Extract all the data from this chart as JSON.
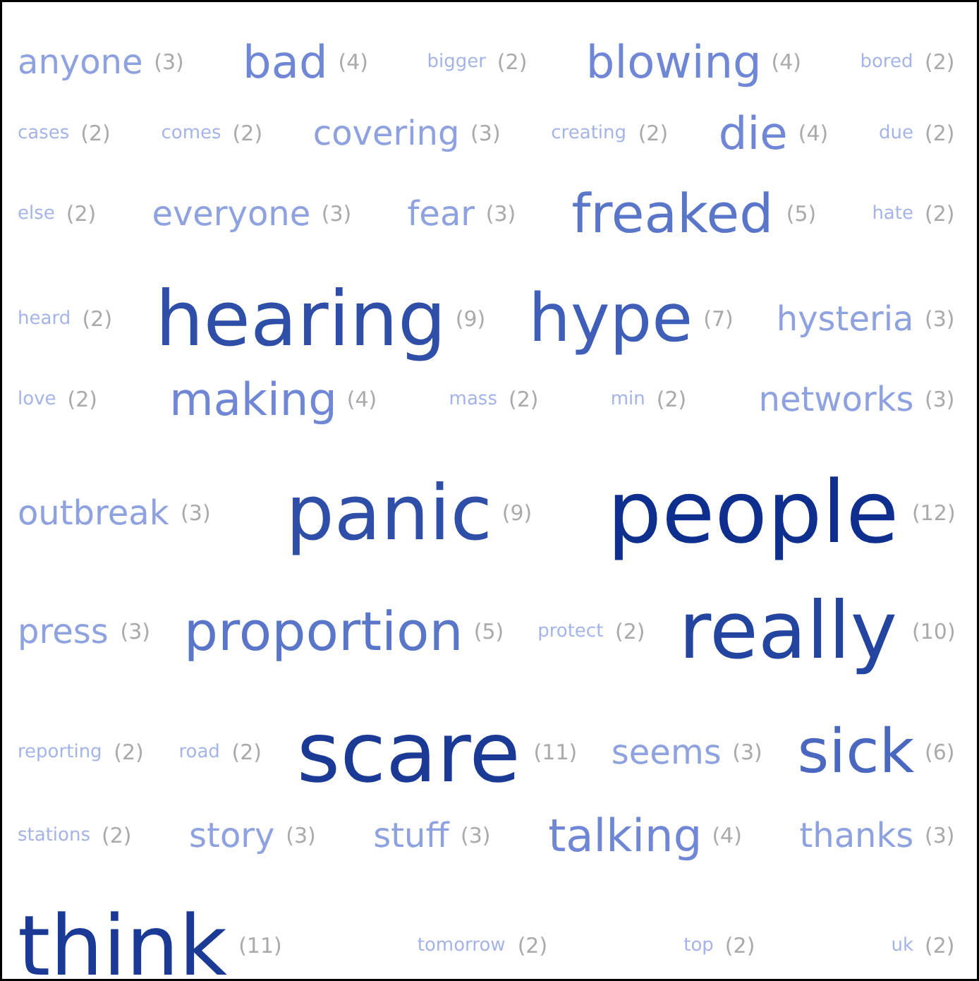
{
  "chart_data": {
    "type": "other",
    "categories": [
      "anyone",
      "bad",
      "bigger",
      "blowing",
      "bored",
      "cases",
      "comes",
      "covering",
      "creating",
      "die",
      "due",
      "else",
      "everyone",
      "fear",
      "freaked",
      "hate",
      "heard",
      "hearing",
      "hype",
      "hysteria",
      "love",
      "making",
      "mass",
      "min",
      "networks",
      "outbreak",
      "panic",
      "people",
      "press",
      "proportion",
      "protect",
      "really",
      "reporting",
      "road",
      "scare",
      "seems",
      "sick",
      "stations",
      "story",
      "stuff",
      "talking",
      "thanks",
      "think",
      "tomorrow",
      "top",
      "uk"
    ],
    "values": [
      3,
      4,
      2,
      4,
      2,
      2,
      2,
      3,
      2,
      4,
      2,
      2,
      3,
      3,
      5,
      2,
      2,
      9,
      7,
      3,
      2,
      4,
      2,
      2,
      3,
      3,
      9,
      12,
      3,
      5,
      2,
      10,
      2,
      2,
      11,
      3,
      6,
      2,
      3,
      3,
      4,
      3,
      11,
      2,
      2,
      2
    ],
    "value_labels": [
      "(3)",
      "(4)",
      "(2)",
      "(4)",
      "(2)",
      "(2)",
      "(2)",
      "(3)",
      "(2)",
      "(4)",
      "(2)",
      "(2)",
      "(3)",
      "(3)",
      "(5)",
      "(2)",
      "(2)",
      "(9)",
      "(7)",
      "(3)",
      "(2)",
      "(4)",
      "(2)",
      "(2)",
      "(3)",
      "(3)",
      "(9)",
      "(12)",
      "(3)",
      "(5)",
      "(2)",
      "(10)",
      "(2)",
      "(2)",
      "(11)",
      "(3)",
      "(6)",
      "(2)",
      "(3)",
      "(3)",
      "(4)",
      "(3)",
      "(11)",
      "(2)",
      "(2)",
      "(2)"
    ],
    "colors": [
      "#8ea2df",
      "#6f87d4",
      "#a4b4e8",
      "#6f87d4",
      "#a4b4e8",
      "#a4b4e8",
      "#a4b4e8",
      "#8ea2df",
      "#a4b4e8",
      "#6f87d4",
      "#a4b4e8",
      "#a4b4e8",
      "#8ea2df",
      "#8ea2df",
      "#5a76c8",
      "#a4b4e8",
      "#a4b4e8",
      "#2e4ea8",
      "#3f5eb8",
      "#8ea2df",
      "#a4b4e8",
      "#6f87d4",
      "#a4b4e8",
      "#a4b4e8",
      "#8ea2df",
      "#8ea2df",
      "#2e4ea8",
      "#0f2f8f",
      "#8ea2df",
      "#5a76c8",
      "#a4b4e8",
      "#23449f",
      "#a4b4e8",
      "#a4b4e8",
      "#1a3a96",
      "#8ea2df",
      "#4a68c0",
      "#a4b4e8",
      "#8ea2df",
      "#8ea2df",
      "#6f87d4",
      "#8ea2df",
      "#1a3a96",
      "#a4b4e8",
      "#a4b4e8",
      "#a4b4e8"
    ]
  }
}
